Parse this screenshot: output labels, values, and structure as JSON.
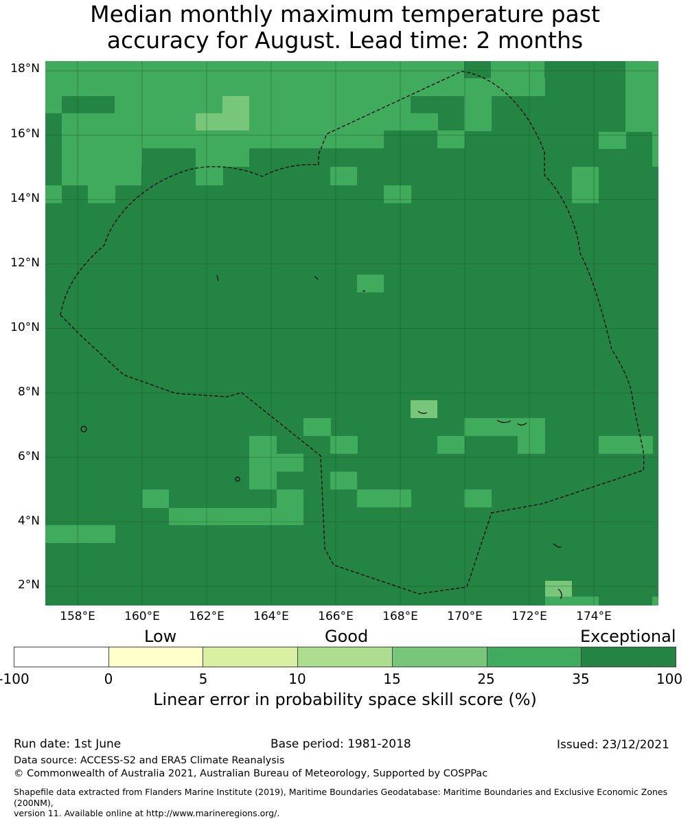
{
  "title_line1": "Median monthly maximum temperature past",
  "title_line2": "accuracy for August. Lead time: 2 months",
  "map": {
    "lon_range": [
      157,
      176
    ],
    "lat_range": [
      1.4,
      18.3
    ],
    "lat_ticks": [
      "18°N",
      "16°N",
      "14°N",
      "12°N",
      "10°N",
      "8°N",
      "6°N",
      "4°N",
      "2°N"
    ],
    "lon_ticks": [
      "158°E",
      "160°E",
      "162°E",
      "164°E",
      "166°E",
      "168°E",
      "170°E",
      "172°E",
      "174°E"
    ],
    "colors": {
      "exceptional": "#238443",
      "good_high": "#41ab5d",
      "good_mid": "#78c679"
    },
    "eez_boundary_style": "dashed black line"
  },
  "colorbar": {
    "categories": [
      "Low",
      "Good",
      "Exceptional"
    ],
    "tick_labels": [
      "-100",
      "0",
      "5",
      "10",
      "15",
      "25",
      "35",
      "100"
    ],
    "colors": [
      "#ffffff",
      "#ffffcc",
      "#d9f0a3",
      "#addd8e",
      "#78c679",
      "#41ab5d",
      "#238443"
    ],
    "label": "Linear error in probability space skill score (%)"
  },
  "footer": {
    "run_date": "Run date: 1st June",
    "base_period": "Base period: 1981-2018",
    "issued": "Issued: 23/12/2021",
    "data_source": "Data source: ACCESS-S2 and ERA5 Climate Reanalysis",
    "copyright": "© Commonwealth of Australia 2021, Australian Bureau of Meteorology, Supported by COSPPac",
    "shapefile_line1": "Shapefile data extracted from Flanders Marine Institute (2019), Maritime Boundaries Geodatabase: Maritime Boundaries and Exclusive Economic Zones (200NM),",
    "shapefile_line2": "version 11. Available online at http://www.marineregions.org/."
  }
}
